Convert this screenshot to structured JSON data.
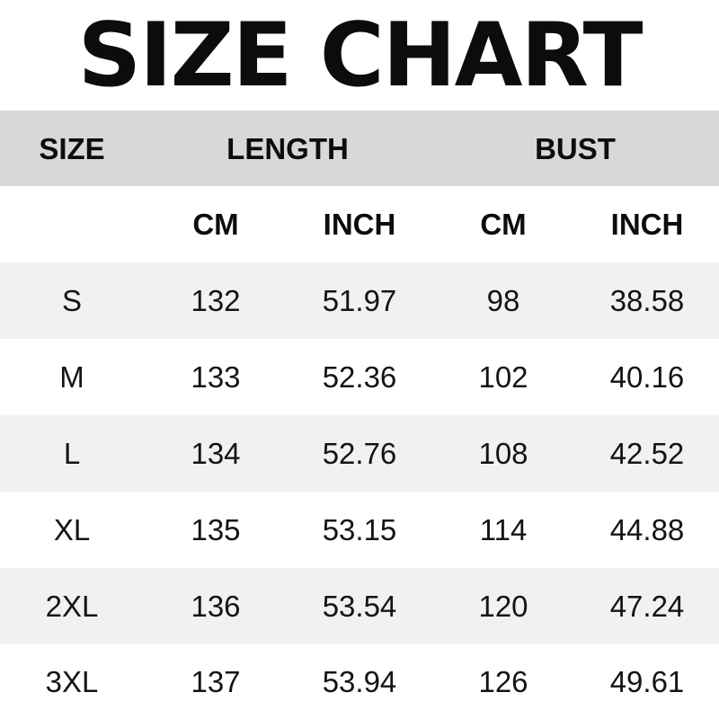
{
  "colors": {
    "title": "#0c0c0c",
    "header_band_bg": "#d8d8d8",
    "stripe_bg": "#f1f1f1",
    "page_bg": "#ffffff",
    "text": "#141414",
    "header_text": "#0d0d0d"
  },
  "chart_data": {
    "type": "table",
    "title": "SIZE CHART",
    "group_headers": [
      {
        "label": "SIZE",
        "span": 1
      },
      {
        "label": "LENGTH",
        "span": 2
      },
      {
        "label": "BUST",
        "span": 2
      }
    ],
    "unit_headers": [
      "CM",
      "INCH",
      "CM",
      "INCH"
    ],
    "columns": [
      "SIZE",
      "LENGTH CM",
      "LENGTH INCH",
      "BUST CM",
      "BUST INCH"
    ],
    "rows": [
      [
        "S",
        "132",
        "51.97",
        "98",
        "38.58"
      ],
      [
        "M",
        "133",
        "52.36",
        "102",
        "40.16"
      ],
      [
        "L",
        "134",
        "52.76",
        "108",
        "42.52"
      ],
      [
        "XL",
        "135",
        "53.15",
        "114",
        "44.88"
      ],
      [
        "2XL",
        "136",
        "53.54",
        "120",
        "47.24"
      ],
      [
        "3XL",
        "137",
        "53.94",
        "126",
        "49.61"
      ]
    ],
    "layout": {
      "zebra_striped_rows": true,
      "grid_lines": false,
      "columns_equal_width": true
    }
  }
}
